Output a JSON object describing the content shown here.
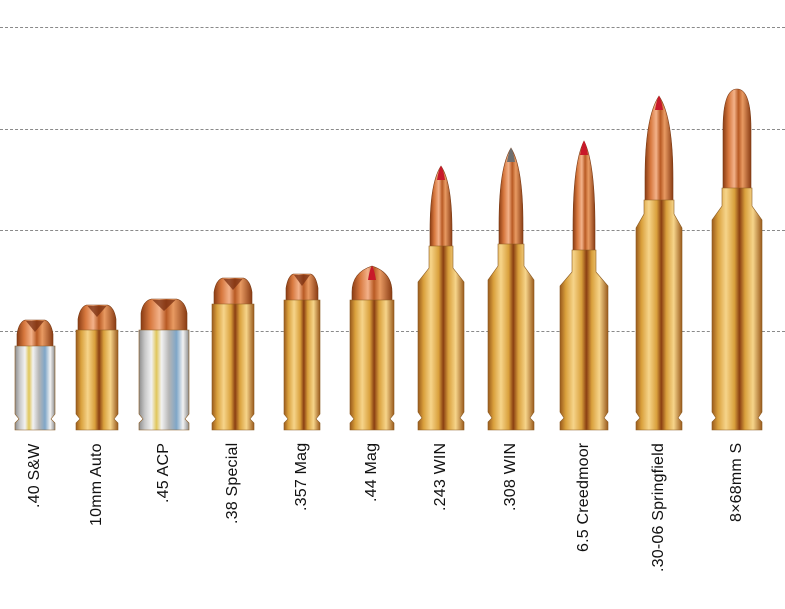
{
  "colors": {
    "brass_light": "#f6d48a",
    "brass_mid": "#d9a03c",
    "brass_dark": "#9a5a1c",
    "copper_light": "#f3b28a",
    "copper_dark": "#8a3c14",
    "nickel_light": "#f2f2f2",
    "nickel_dark": "#8c8c8c",
    "polymer_tip": "#c8192a",
    "soft_tip": "#6e6e6e",
    "stripe_blue": "#7fa6c8",
    "gridline": "#8a8a8a"
  },
  "cartridges": [
    {
      "name": ".40 S&W",
      "case": "nickel",
      "tip": "hollowpoint"
    },
    {
      "name": "10mm Auto",
      "case": "brass",
      "tip": "hollowpoint"
    },
    {
      "name": ".45 ACP",
      "case": "nickel",
      "tip": "hollowpoint"
    },
    {
      "name": ".38 Special",
      "case": "brass",
      "tip": "hollowpoint"
    },
    {
      "name": ".357 Mag",
      "case": "brass",
      "tip": "hollowpoint"
    },
    {
      "name": ".44 Mag",
      "case": "brass",
      "tip": "polymer"
    },
    {
      "name": ".243 WIN",
      "case": "brass",
      "tip": "polymer"
    },
    {
      "name": ".308 WIN",
      "case": "brass",
      "tip": "soft"
    },
    {
      "name": "6.5 Creedmoor",
      "case": "brass",
      "tip": "polymer"
    },
    {
      "name": ".30-06 Springfield",
      "case": "brass",
      "tip": "polymer"
    },
    {
      "name": "8×68mm S",
      "case": "brass",
      "tip": "roundnose"
    }
  ]
}
